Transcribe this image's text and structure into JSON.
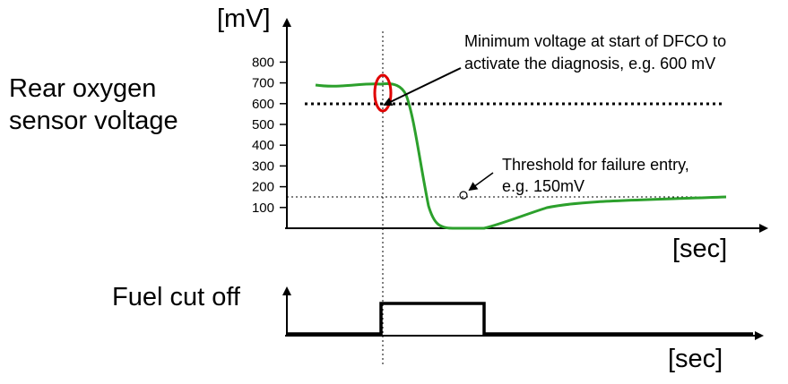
{
  "upper": {
    "axis_unit": "[mV]",
    "label_lines": [
      "Rear oxygen",
      "sensor voltage"
    ],
    "x_axis_unit": "[sec]",
    "yticks": [
      100,
      200,
      300,
      400,
      500,
      600,
      700,
      800
    ]
  },
  "annotations": {
    "minimum_voltage": [
      "Minimum voltage at start of DFCO to",
      "activate the diagnosis, e.g. 600 mV"
    ],
    "threshold": [
      "Threshold for failure entry,",
      "e.g. 150mV"
    ]
  },
  "lower": {
    "label": "Fuel cut off",
    "x_axis_unit": "[sec]"
  }
}
